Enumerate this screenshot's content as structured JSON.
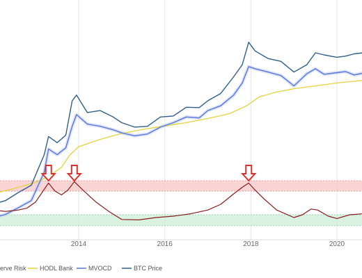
{
  "chart_data": {
    "type": "line",
    "x_axis": {
      "tick_labels": [
        "2014",
        "2016",
        "2018",
        "2020"
      ],
      "range": [
        2012.0,
        2020.6
      ]
    },
    "panels": [
      {
        "name": "price",
        "y_scale": "log",
        "y_range": [
          1,
          100000
        ],
        "series": [
          {
            "name": "HODL Bank",
            "color": "#e4d23c",
            "x": [
              2012.0,
              2012.5,
              2013.0,
              2013.3,
              2013.6,
              2013.8,
              2014.0,
              2014.5,
              2015.0,
              2015.5,
              2016.0,
              2016.5,
              2017.0,
              2017.5,
              2017.9,
              2018.2,
              2018.6,
              2019.0,
              2019.5,
              2020.0,
              2020.6
            ],
            "values": [
              8.5,
              11,
              15,
              20,
              32,
              60,
              90,
              130,
              175,
              215,
              255,
              300,
              370,
              470,
              700,
              1100,
              1400,
              1650,
              1900,
              2200,
              2500
            ]
          },
          {
            "name": "MVOCD",
            "color": "#5577d9",
            "x": [
              2012.0,
              2012.3,
              2012.6,
              2012.9,
              2013.2,
              2013.3,
              2013.5,
              2013.7,
              2013.85,
              2013.95,
              2014.2,
              2014.5,
              2014.8,
              2015.0,
              2015.3,
              2015.6,
              2015.9,
              2016.2,
              2016.5,
              2016.8,
              2017.0,
              2017.3,
              2017.6,
              2017.8,
              2017.95,
              2018.1,
              2018.4,
              2018.7,
              2019.0,
              2019.3,
              2019.5,
              2019.7,
              2020.0,
              2020.2,
              2020.4,
              2020.6
            ],
            "values": [
              2.5,
              3.0,
              4.2,
              6.0,
              25,
              80,
              60,
              85,
              250,
              450,
              280,
              250,
              210,
              180,
              155,
              170,
              240,
              300,
              400,
              380,
              550,
              700,
              1200,
              2200,
              5000,
              4500,
              3800,
              3200,
              1900,
              3500,
              4500,
              3400,
              3700,
              3900,
              3300,
              3600
            ]
          },
          {
            "name": "BTC Price",
            "color": "#2f5d8a",
            "x": [
              2012.0,
              2012.3,
              2012.6,
              2012.9,
              2013.2,
              2013.3,
              2013.5,
              2013.7,
              2013.85,
              2013.95,
              2014.2,
              2014.5,
              2014.8,
              2015.0,
              2015.3,
              2015.6,
              2015.9,
              2016.2,
              2016.5,
              2016.8,
              2017.0,
              2017.3,
              2017.6,
              2017.8,
              2017.95,
              2018.1,
              2018.4,
              2018.7,
              2019.0,
              2019.3,
              2019.5,
              2019.7,
              2020.0,
              2020.2,
              2020.4,
              2020.6
            ],
            "values": [
              5.0,
              6.0,
              9.0,
              13,
              60,
              150,
              110,
              160,
              900,
              1200,
              500,
              550,
              400,
              300,
              240,
              250,
              400,
              420,
              650,
              640,
              900,
              1300,
              3000,
              5500,
              17000,
              11000,
              7500,
              6500,
              3800,
              5500,
              10000,
              9000,
              8000,
              8500,
              9500,
              10000
            ]
          }
        ]
      },
      {
        "name": "oscillator",
        "series": [
          {
            "name": "Reserve Risk",
            "color": "#8b1a1a",
            "x": [
              2012.0,
              2012.3,
              2012.6,
              2012.8,
              2013.0,
              2013.15,
              2013.3,
              2013.45,
              2013.6,
              2013.75,
              2013.9,
              2014.1,
              2014.4,
              2014.7,
              2015.0,
              2015.4,
              2015.8,
              2016.2,
              2016.6,
              2017.0,
              2017.3,
              2017.6,
              2017.8,
              2017.95,
              2018.1,
              2018.3,
              2018.6,
              2019.0,
              2019.2,
              2019.4,
              2019.55,
              2019.8,
              2020.0,
              2020.3,
              2020.6
            ],
            "values": [
              0.38,
              0.35,
              0.38,
              0.42,
              0.55,
              0.75,
              0.95,
              0.78,
              0.7,
              0.8,
              0.98,
              0.8,
              0.55,
              0.35,
              0.18,
              0.17,
              0.22,
              0.25,
              0.3,
              0.38,
              0.5,
              0.72,
              0.86,
              0.95,
              0.8,
              0.62,
              0.38,
              0.22,
              0.28,
              0.4,
              0.38,
              0.25,
              0.2,
              0.28,
              0.3
            ]
          }
        ],
        "bands": [
          {
            "name": "top-zone",
            "range": [
              0.78,
              1.0
            ],
            "color": "#f7c6c6"
          },
          {
            "name": "bottom-zone",
            "range": [
              0.05,
              0.28
            ],
            "color": "#cdeed8"
          }
        ],
        "markers": [
          {
            "kind": "down-arrow",
            "x": 2013.3,
            "color": "#d9302c"
          },
          {
            "kind": "down-arrow",
            "x": 2013.9,
            "color": "#d9302c"
          },
          {
            "kind": "down-arrow",
            "x": 2017.95,
            "color": "#d9302c"
          }
        ]
      }
    ],
    "legend": {
      "position": "bottom",
      "items": [
        {
          "label": "erve Risk",
          "color": "#8b1a1a"
        },
        {
          "label": "HODL Bank",
          "color": "#e4d23c"
        },
        {
          "label": "MVOCD",
          "color": "#5577d9"
        },
        {
          "label": "BTC Price",
          "color": "#2f5d8a"
        }
      ]
    }
  }
}
